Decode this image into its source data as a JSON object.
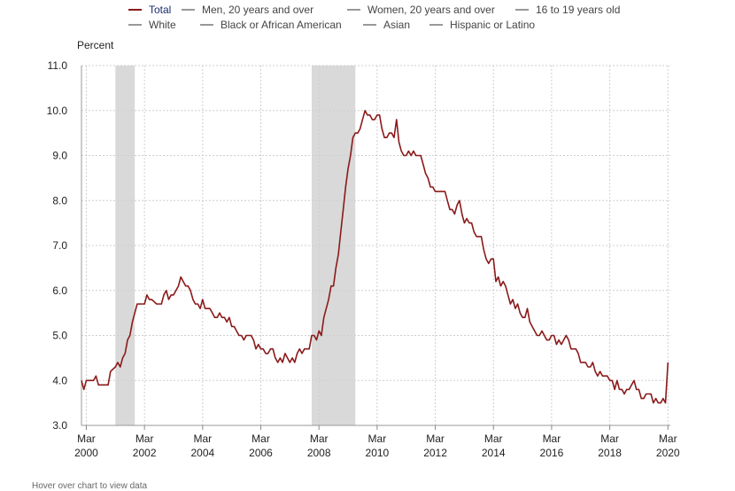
{
  "legend": {
    "items": [
      {
        "label": "Total",
        "color": "#8b1a1a",
        "active": true
      },
      {
        "label": "Men, 20 years and over",
        "color": "#999999",
        "active": false
      },
      {
        "label": "Women, 20 years and over",
        "color": "#999999",
        "active": false
      },
      {
        "label": "16 to 19 years old",
        "color": "#999999",
        "active": false
      },
      {
        "label": "White",
        "color": "#999999",
        "active": false
      },
      {
        "label": "Black or African American",
        "color": "#999999",
        "active": false
      },
      {
        "label": "Asian",
        "color": "#999999",
        "active": false
      },
      {
        "label": "Hispanic or Latino",
        "color": "#999999",
        "active": false
      }
    ]
  },
  "footer_note": "Hover over chart to view data",
  "chart_data": {
    "type": "line",
    "ylabel": "Percent",
    "ylim": [
      3.0,
      11.0
    ],
    "yticks": [
      "3.0",
      "4.0",
      "5.0",
      "6.0",
      "7.0",
      "8.0",
      "9.0",
      "10.0",
      "11.0"
    ],
    "xlim": [
      "2000-01",
      "2020-04"
    ],
    "xticks": [
      {
        "month": "Mar",
        "year": "2000",
        "date": "2000-03"
      },
      {
        "month": "Mar",
        "year": "2002",
        "date": "2002-03"
      },
      {
        "month": "Mar",
        "year": "2004",
        "date": "2004-03"
      },
      {
        "month": "Mar",
        "year": "2006",
        "date": "2006-03"
      },
      {
        "month": "Mar",
        "year": "2008",
        "date": "2008-03"
      },
      {
        "month": "Mar",
        "year": "2010",
        "date": "2010-03"
      },
      {
        "month": "Mar",
        "year": "2012",
        "date": "2012-03"
      },
      {
        "month": "Mar",
        "year": "2014",
        "date": "2014-03"
      },
      {
        "month": "Mar",
        "year": "2016",
        "date": "2016-03"
      },
      {
        "month": "Mar",
        "year": "2018",
        "date": "2018-03"
      },
      {
        "month": "Mar",
        "year": "2020",
        "date": "2020-03"
      }
    ],
    "grid": true,
    "recession_shading": [
      {
        "start": "2001-03",
        "end": "2001-11",
        "color": "#d9d9d9"
      },
      {
        "start": "2007-12",
        "end": "2009-06",
        "color": "#d9d9d9"
      }
    ],
    "series": [
      {
        "name": "Total",
        "color": "#8b1a1a",
        "points": [
          [
            "2000-01",
            4.0
          ],
          [
            "2000-02",
            3.8
          ],
          [
            "2000-03",
            4.0
          ],
          [
            "2000-05",
            4.0
          ],
          [
            "2000-06",
            4.0
          ],
          [
            "2000-07",
            4.1
          ],
          [
            "2000-08",
            3.9
          ],
          [
            "2000-10",
            3.9
          ],
          [
            "2000-12",
            3.9
          ],
          [
            "2001-01",
            4.2
          ],
          [
            "2001-03",
            4.3
          ],
          [
            "2001-04",
            4.4
          ],
          [
            "2001-05",
            4.3
          ],
          [
            "2001-06",
            4.5
          ],
          [
            "2001-07",
            4.6
          ],
          [
            "2001-08",
            4.9
          ],
          [
            "2001-09",
            5.0
          ],
          [
            "2001-10",
            5.3
          ],
          [
            "2001-11",
            5.5
          ],
          [
            "2001-12",
            5.7
          ],
          [
            "2002-01",
            5.7
          ],
          [
            "2002-02",
            5.7
          ],
          [
            "2002-03",
            5.7
          ],
          [
            "2002-04",
            5.9
          ],
          [
            "2002-05",
            5.8
          ],
          [
            "2002-06",
            5.8
          ],
          [
            "2002-08",
            5.7
          ],
          [
            "2002-09",
            5.7
          ],
          [
            "2002-10",
            5.7
          ],
          [
            "2002-11",
            5.9
          ],
          [
            "2002-12",
            6.0
          ],
          [
            "2003-01",
            5.8
          ],
          [
            "2003-02",
            5.9
          ],
          [
            "2003-03",
            5.9
          ],
          [
            "2003-04",
            6.0
          ],
          [
            "2003-05",
            6.1
          ],
          [
            "2003-06",
            6.3
          ],
          [
            "2003-07",
            6.2
          ],
          [
            "2003-08",
            6.1
          ],
          [
            "2003-09",
            6.1
          ],
          [
            "2003-10",
            6.0
          ],
          [
            "2003-11",
            5.8
          ],
          [
            "2003-12",
            5.7
          ],
          [
            "2004-01",
            5.7
          ],
          [
            "2004-02",
            5.6
          ],
          [
            "2004-03",
            5.8
          ],
          [
            "2004-04",
            5.6
          ],
          [
            "2004-05",
            5.6
          ],
          [
            "2004-06",
            5.6
          ],
          [
            "2004-07",
            5.5
          ],
          [
            "2004-08",
            5.4
          ],
          [
            "2004-09",
            5.4
          ],
          [
            "2004-10",
            5.5
          ],
          [
            "2004-11",
            5.4
          ],
          [
            "2004-12",
            5.4
          ],
          [
            "2005-01",
            5.3
          ],
          [
            "2005-02",
            5.4
          ],
          [
            "2005-03",
            5.2
          ],
          [
            "2005-04",
            5.2
          ],
          [
            "2005-05",
            5.1
          ],
          [
            "2005-06",
            5.0
          ],
          [
            "2005-07",
            5.0
          ],
          [
            "2005-08",
            4.9
          ],
          [
            "2005-09",
            5.0
          ],
          [
            "2005-10",
            5.0
          ],
          [
            "2005-11",
            5.0
          ],
          [
            "2005-12",
            4.9
          ],
          [
            "2006-01",
            4.7
          ],
          [
            "2006-02",
            4.8
          ],
          [
            "2006-03",
            4.7
          ],
          [
            "2006-04",
            4.7
          ],
          [
            "2006-05",
            4.6
          ],
          [
            "2006-06",
            4.6
          ],
          [
            "2006-07",
            4.7
          ],
          [
            "2006-08",
            4.7
          ],
          [
            "2006-09",
            4.5
          ],
          [
            "2006-10",
            4.4
          ],
          [
            "2006-11",
            4.5
          ],
          [
            "2006-12",
            4.4
          ],
          [
            "2007-01",
            4.6
          ],
          [
            "2007-02",
            4.5
          ],
          [
            "2007-03",
            4.4
          ],
          [
            "2007-04",
            4.5
          ],
          [
            "2007-05",
            4.4
          ],
          [
            "2007-06",
            4.6
          ],
          [
            "2007-07",
            4.7
          ],
          [
            "2007-08",
            4.6
          ],
          [
            "2007-09",
            4.7
          ],
          [
            "2007-10",
            4.7
          ],
          [
            "2007-11",
            4.7
          ],
          [
            "2007-12",
            5.0
          ],
          [
            "2008-01",
            5.0
          ],
          [
            "2008-02",
            4.9
          ],
          [
            "2008-03",
            5.1
          ],
          [
            "2008-04",
            5.0
          ],
          [
            "2008-05",
            5.4
          ],
          [
            "2008-06",
            5.6
          ],
          [
            "2008-07",
            5.8
          ],
          [
            "2008-08",
            6.1
          ],
          [
            "2008-09",
            6.1
          ],
          [
            "2008-10",
            6.5
          ],
          [
            "2008-11",
            6.8
          ],
          [
            "2008-12",
            7.3
          ],
          [
            "2009-01",
            7.8
          ],
          [
            "2009-02",
            8.3
          ],
          [
            "2009-03",
            8.7
          ],
          [
            "2009-04",
            9.0
          ],
          [
            "2009-05",
            9.4
          ],
          [
            "2009-06",
            9.5
          ],
          [
            "2009-07",
            9.5
          ],
          [
            "2009-08",
            9.6
          ],
          [
            "2009-09",
            9.8
          ],
          [
            "2009-10",
            10.0
          ],
          [
            "2009-11",
            9.9
          ],
          [
            "2009-12",
            9.9
          ],
          [
            "2010-01",
            9.8
          ],
          [
            "2010-02",
            9.8
          ],
          [
            "2010-03",
            9.9
          ],
          [
            "2010-04",
            9.9
          ],
          [
            "2010-05",
            9.6
          ],
          [
            "2010-06",
            9.4
          ],
          [
            "2010-07",
            9.4
          ],
          [
            "2010-08",
            9.5
          ],
          [
            "2010-09",
            9.5
          ],
          [
            "2010-10",
            9.4
          ],
          [
            "2010-11",
            9.8
          ],
          [
            "2010-12",
            9.3
          ],
          [
            "2011-01",
            9.1
          ],
          [
            "2011-02",
            9.0
          ],
          [
            "2011-03",
            9.0
          ],
          [
            "2011-04",
            9.1
          ],
          [
            "2011-05",
            9.0
          ],
          [
            "2011-06",
            9.1
          ],
          [
            "2011-07",
            9.0
          ],
          [
            "2011-08",
            9.0
          ],
          [
            "2011-09",
            9.0
          ],
          [
            "2011-10",
            8.8
          ],
          [
            "2011-11",
            8.6
          ],
          [
            "2011-12",
            8.5
          ],
          [
            "2012-01",
            8.3
          ],
          [
            "2012-02",
            8.3
          ],
          [
            "2012-03",
            8.2
          ],
          [
            "2012-04",
            8.2
          ],
          [
            "2012-05",
            8.2
          ],
          [
            "2012-06",
            8.2
          ],
          [
            "2012-07",
            8.2
          ],
          [
            "2012-08",
            8.0
          ],
          [
            "2012-09",
            7.8
          ],
          [
            "2012-10",
            7.8
          ],
          [
            "2012-11",
            7.7
          ],
          [
            "2012-12",
            7.9
          ],
          [
            "2013-01",
            8.0
          ],
          [
            "2013-02",
            7.7
          ],
          [
            "2013-03",
            7.5
          ],
          [
            "2013-04",
            7.6
          ],
          [
            "2013-05",
            7.5
          ],
          [
            "2013-06",
            7.5
          ],
          [
            "2013-07",
            7.3
          ],
          [
            "2013-08",
            7.2
          ],
          [
            "2013-09",
            7.2
          ],
          [
            "2013-10",
            7.2
          ],
          [
            "2013-11",
            6.9
          ],
          [
            "2013-12",
            6.7
          ],
          [
            "2014-01",
            6.6
          ],
          [
            "2014-02",
            6.7
          ],
          [
            "2014-03",
            6.7
          ],
          [
            "2014-04",
            6.2
          ],
          [
            "2014-05",
            6.3
          ],
          [
            "2014-06",
            6.1
          ],
          [
            "2014-07",
            6.2
          ],
          [
            "2014-08",
            6.1
          ],
          [
            "2014-09",
            5.9
          ],
          [
            "2014-10",
            5.7
          ],
          [
            "2014-11",
            5.8
          ],
          [
            "2014-12",
            5.6
          ],
          [
            "2015-01",
            5.7
          ],
          [
            "2015-02",
            5.5
          ],
          [
            "2015-03",
            5.4
          ],
          [
            "2015-04",
            5.4
          ],
          [
            "2015-05",
            5.6
          ],
          [
            "2015-06",
            5.3
          ],
          [
            "2015-07",
            5.2
          ],
          [
            "2015-08",
            5.1
          ],
          [
            "2015-09",
            5.0
          ],
          [
            "2015-10",
            5.0
          ],
          [
            "2015-11",
            5.1
          ],
          [
            "2015-12",
            5.0
          ],
          [
            "2016-01",
            4.9
          ],
          [
            "2016-02",
            4.9
          ],
          [
            "2016-03",
            5.0
          ],
          [
            "2016-04",
            5.0
          ],
          [
            "2016-05",
            4.8
          ],
          [
            "2016-06",
            4.9
          ],
          [
            "2016-07",
            4.8
          ],
          [
            "2016-08",
            4.9
          ],
          [
            "2016-09",
            5.0
          ],
          [
            "2016-10",
            4.9
          ],
          [
            "2016-11",
            4.7
          ],
          [
            "2016-12",
            4.7
          ],
          [
            "2017-01",
            4.7
          ],
          [
            "2017-02",
            4.6
          ],
          [
            "2017-03",
            4.4
          ],
          [
            "2017-04",
            4.4
          ],
          [
            "2017-05",
            4.4
          ],
          [
            "2017-06",
            4.3
          ],
          [
            "2017-07",
            4.3
          ],
          [
            "2017-08",
            4.4
          ],
          [
            "2017-09",
            4.2
          ],
          [
            "2017-10",
            4.1
          ],
          [
            "2017-11",
            4.2
          ],
          [
            "2017-12",
            4.1
          ],
          [
            "2018-01",
            4.1
          ],
          [
            "2018-02",
            4.1
          ],
          [
            "2018-03",
            4.0
          ],
          [
            "2018-04",
            4.0
          ],
          [
            "2018-05",
            3.8
          ],
          [
            "2018-06",
            4.0
          ],
          [
            "2018-07",
            3.8
          ],
          [
            "2018-08",
            3.8
          ],
          [
            "2018-09",
            3.7
          ],
          [
            "2018-10",
            3.8
          ],
          [
            "2018-11",
            3.8
          ],
          [
            "2018-12",
            3.9
          ],
          [
            "2019-01",
            4.0
          ],
          [
            "2019-02",
            3.8
          ],
          [
            "2019-03",
            3.8
          ],
          [
            "2019-04",
            3.6
          ],
          [
            "2019-05",
            3.6
          ],
          [
            "2019-06",
            3.7
          ],
          [
            "2019-07",
            3.7
          ],
          [
            "2019-08",
            3.7
          ],
          [
            "2019-09",
            3.5
          ],
          [
            "2019-10",
            3.6
          ],
          [
            "2019-11",
            3.5
          ],
          [
            "2019-12",
            3.5
          ],
          [
            "2020-01",
            3.6
          ],
          [
            "2020-02",
            3.5
          ],
          [
            "2020-03",
            4.4
          ]
        ]
      }
    ]
  }
}
